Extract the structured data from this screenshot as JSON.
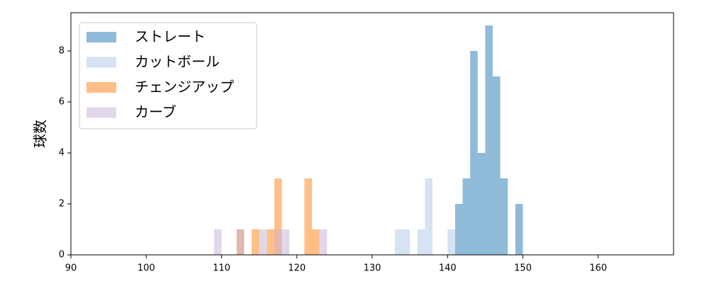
{
  "chart_data": {
    "type": "histogram",
    "y_label": "球数",
    "series": [
      {
        "name": "ストレート",
        "color": "#1f77b4",
        "bins": [
          141,
          142,
          143,
          144,
          145,
          146,
          147,
          148,
          149,
          150
        ],
        "values": [
          2,
          3,
          8,
          4,
          9,
          7,
          3,
          0,
          2
        ]
      },
      {
        "name": "カットボール",
        "color": "#aec7e8",
        "bins": [
          133,
          134,
          135,
          136,
          137,
          138,
          139,
          140,
          141
        ],
        "values": [
          1,
          1,
          0,
          1,
          3,
          0,
          0,
          1
        ]
      },
      {
        "name": "チェンジアップ",
        "color": "#ff7f0e",
        "bins": [
          112,
          113,
          114,
          115,
          116,
          117,
          118,
          119,
          120,
          121,
          122,
          123
        ],
        "values": [
          1,
          0,
          1,
          0,
          1,
          3,
          0,
          0,
          0,
          3,
          1
        ]
      },
      {
        "name": "カーブ",
        "color": "#c5b0d5",
        "bins": [
          109,
          110,
          111,
          112,
          113,
          114,
          115,
          116,
          117,
          118,
          119,
          120,
          121,
          122,
          123,
          124
        ],
        "values": [
          1,
          0,
          0,
          1,
          0,
          0,
          1,
          0,
          1,
          1,
          0,
          0,
          0,
          0,
          1
        ]
      }
    ],
    "opacity": 0.5,
    "xlim": [
      90,
      170
    ],
    "xticks": [
      90,
      100,
      110,
      120,
      130,
      140,
      150,
      160
    ],
    "ylim": [
      0,
      9.5
    ],
    "yticks": [
      0,
      2,
      4,
      6,
      8
    ],
    "legend": "upper-left"
  }
}
